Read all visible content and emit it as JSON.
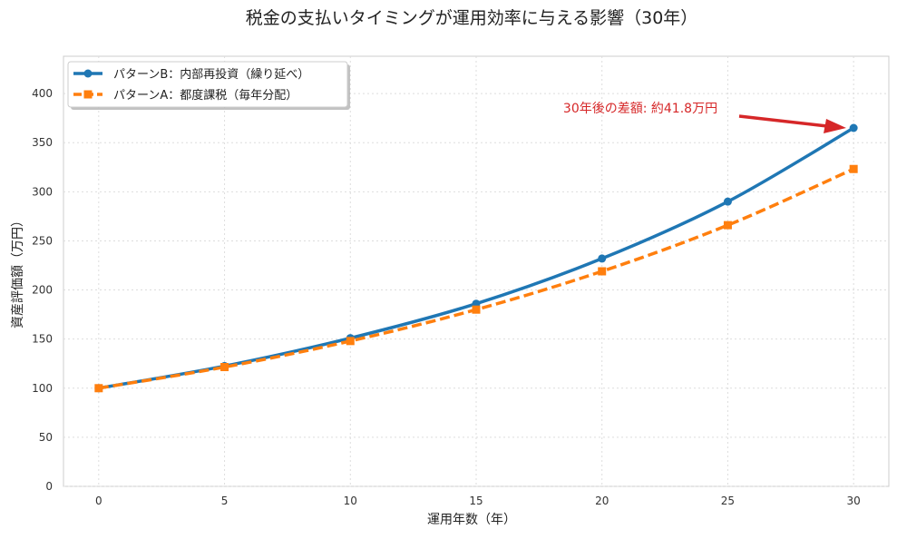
{
  "chart_data": {
    "type": "line",
    "title": "税金の支払いタイミングが運用効率に与える影響（30年）",
    "xlabel": "運用年数（年）",
    "ylabel": "資産評価額（万円）",
    "x": [
      0,
      5,
      10,
      15,
      20,
      25,
      30
    ],
    "xlim": [
      -1.4,
      31.4
    ],
    "ylim": [
      0,
      438
    ],
    "xticks": [
      "0",
      "5",
      "10",
      "15",
      "20",
      "25",
      "30"
    ],
    "yticks": [
      "0",
      "50",
      "100",
      "150",
      "200",
      "250",
      "300",
      "350",
      "400"
    ],
    "grid": true,
    "legend": "top-left",
    "series": [
      {
        "name": "パターンB：内部再投資（繰り延べ）",
        "values": [
          100,
          122.5,
          151,
          186,
          232,
          290,
          365
        ],
        "color": "#1f77b4",
        "style": "solid",
        "marker": "circle"
      },
      {
        "name": "パターンA：都度課税（毎年分配）",
        "values": [
          100,
          121.5,
          148,
          180,
          219,
          266,
          323.2
        ],
        "color": "#ff7f0e",
        "style": "dashed",
        "marker": "square"
      }
    ],
    "annotation": {
      "text": "30年後の差額: 約41.8万円",
      "color": "#d62728",
      "target_x": 30,
      "target_y": 365
    }
  }
}
